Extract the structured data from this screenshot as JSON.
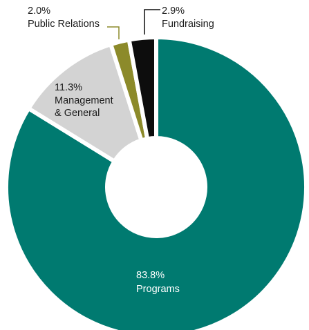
{
  "chart_data": {
    "type": "pie",
    "donut": true,
    "slices": [
      {
        "label": "Programs",
        "value": 83.8,
        "value_label": "83.8%",
        "color": "#007a70"
      },
      {
        "label": "Management & General",
        "label_lines": [
          "Management",
          "& General"
        ],
        "value": 11.3,
        "value_label": "11.3%",
        "color": "#d3d3d3"
      },
      {
        "label": "Public Relations",
        "value": 2.0,
        "value_label": "2.0%",
        "color": "#8c8a2a"
      },
      {
        "label": "Fundraising",
        "value": 2.9,
        "value_label": "2.9%",
        "color": "#0d0d0d"
      }
    ]
  }
}
